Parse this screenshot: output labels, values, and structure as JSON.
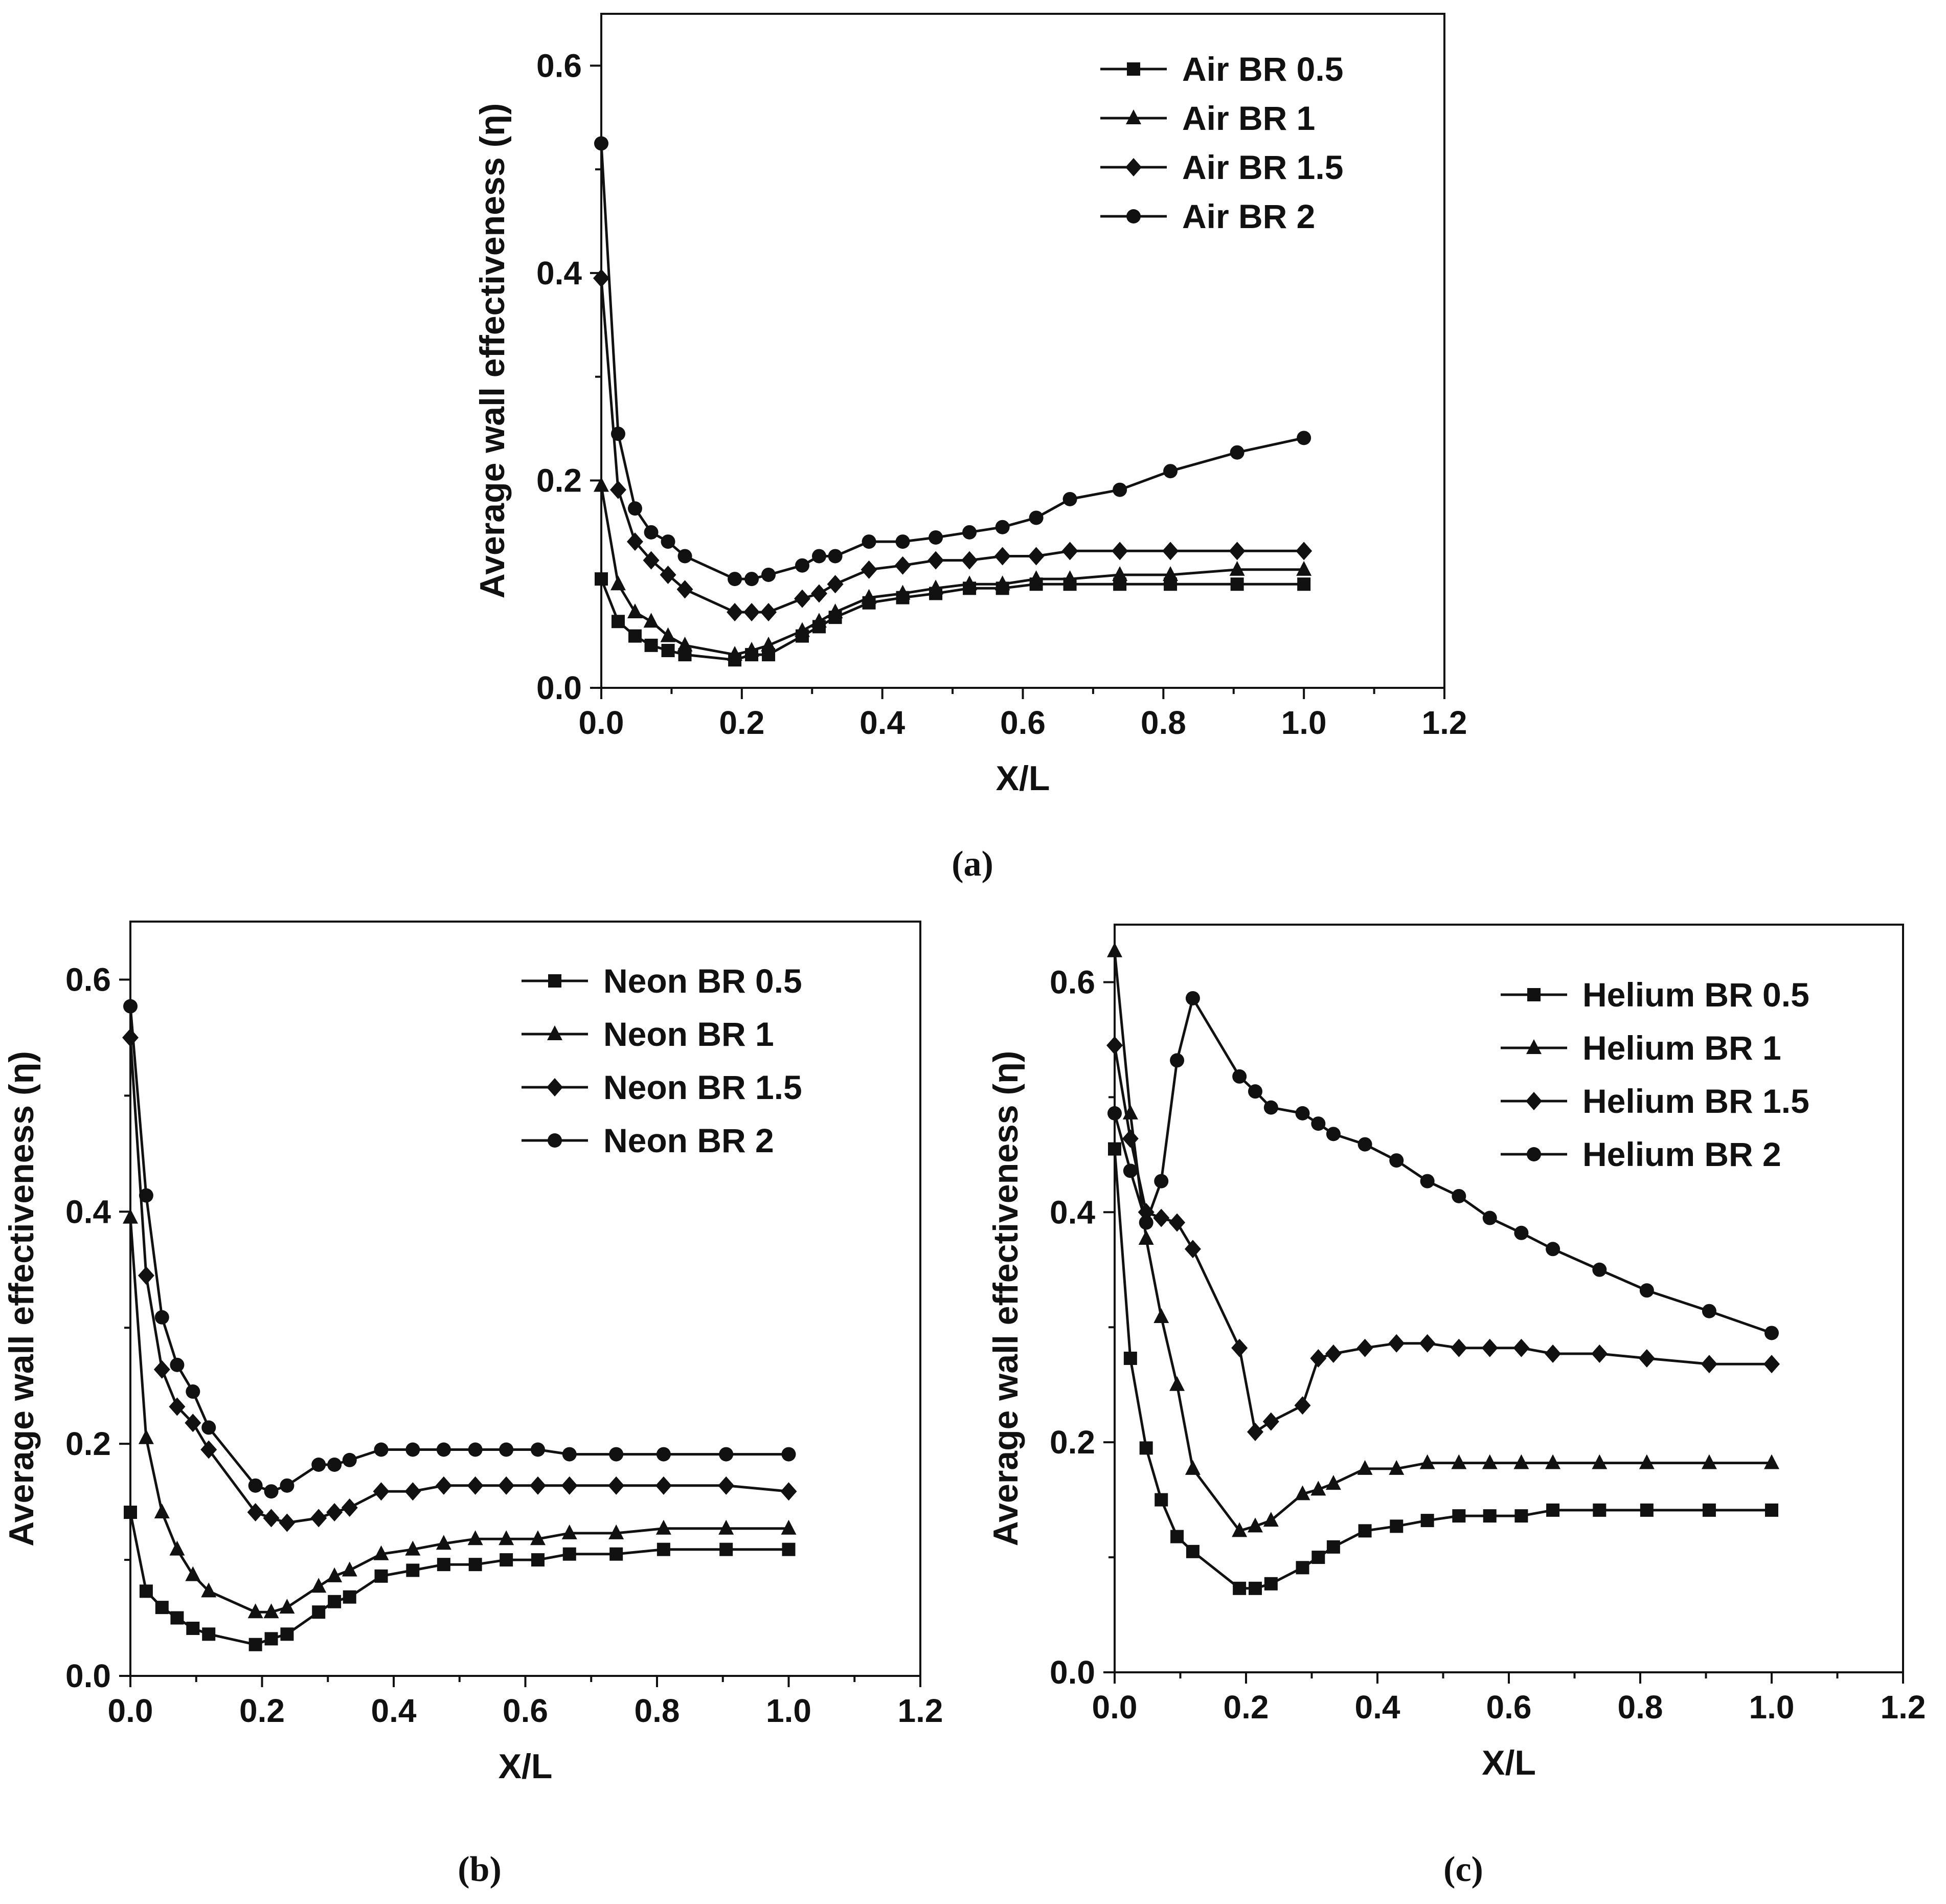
{
  "figure_labels": [
    "(a)",
    "(b)",
    "(c)"
  ],
  "chart_data": [
    {
      "type": "line",
      "panel": "(a)",
      "xlabel": "X/L",
      "ylabel": "Average wall effectiveness (η)",
      "xlim": [
        0,
        1.2
      ],
      "ylim": [
        0,
        0.65
      ],
      "x_ticks": [
        0.0,
        0.2,
        0.4,
        0.6,
        0.8,
        1.0,
        1.2
      ],
      "x_tick_labels": [
        "0.0",
        "0.2",
        "0.4",
        "0.6",
        "0.8",
        "1.0",
        "1.2"
      ],
      "y_ticks": [
        0.0,
        0.2,
        0.4,
        0.6
      ],
      "y_tick_labels": [
        "0.0",
        "0.2",
        "0.4",
        "0.6"
      ],
      "legend_position": "top-right",
      "series": [
        {
          "name": "Air BR 0.5",
          "marker": "square",
          "x": [
            0,
            0.024,
            0.048,
            0.071,
            0.095,
            0.119,
            0.19,
            0.214,
            0.238,
            0.286,
            0.31,
            0.333,
            0.381,
            0.429,
            0.476,
            0.524,
            0.571,
            0.619,
            0.667,
            0.738,
            0.81,
            0.905,
            1.0
          ],
          "y": [
            0.105,
            0.064,
            0.05,
            0.041,
            0.036,
            0.032,
            0.027,
            0.032,
            0.032,
            0.05,
            0.059,
            0.068,
            0.082,
            0.087,
            0.091,
            0.096,
            0.096,
            0.1,
            0.1,
            0.1,
            0.1,
            0.1,
            0.1
          ]
        },
        {
          "name": "Air BR 1",
          "marker": "triangle",
          "x": [
            0,
            0.024,
            0.048,
            0.071,
            0.095,
            0.119,
            0.19,
            0.214,
            0.238,
            0.286,
            0.31,
            0.333,
            0.381,
            0.429,
            0.476,
            0.524,
            0.571,
            0.619,
            0.667,
            0.738,
            0.81,
            0.905,
            1.0
          ],
          "y": [
            0.195,
            0.1,
            0.073,
            0.064,
            0.05,
            0.041,
            0.032,
            0.036,
            0.041,
            0.055,
            0.064,
            0.073,
            0.087,
            0.091,
            0.096,
            0.1,
            0.1,
            0.105,
            0.105,
            0.109,
            0.109,
            0.114,
            0.114
          ]
        },
        {
          "name": "Air BR 1.5",
          "marker": "diamond",
          "x": [
            0,
            0.024,
            0.048,
            0.071,
            0.095,
            0.119,
            0.19,
            0.214,
            0.238,
            0.286,
            0.31,
            0.333,
            0.381,
            0.429,
            0.476,
            0.524,
            0.571,
            0.619,
            0.667,
            0.738,
            0.81,
            0.905,
            1.0
          ],
          "y": [
            0.395,
            0.191,
            0.141,
            0.123,
            0.109,
            0.095,
            0.073,
            0.073,
            0.073,
            0.086,
            0.091,
            0.1,
            0.114,
            0.118,
            0.123,
            0.123,
            0.127,
            0.127,
            0.132,
            0.132,
            0.132,
            0.132,
            0.132
          ]
        },
        {
          "name": "Air BR 2",
          "marker": "circle",
          "x": [
            0,
            0.024,
            0.048,
            0.071,
            0.095,
            0.119,
            0.19,
            0.214,
            0.238,
            0.286,
            0.31,
            0.333,
            0.381,
            0.429,
            0.476,
            0.524,
            0.571,
            0.619,
            0.667,
            0.738,
            0.81,
            0.905,
            1.0
          ],
          "y": [
            0.525,
            0.245,
            0.173,
            0.15,
            0.141,
            0.127,
            0.105,
            0.105,
            0.109,
            0.118,
            0.127,
            0.127,
            0.141,
            0.141,
            0.145,
            0.15,
            0.155,
            0.164,
            0.182,
            0.191,
            0.209,
            0.227,
            0.241
          ]
        }
      ]
    },
    {
      "type": "line",
      "panel": "(b)",
      "xlabel": "X/L",
      "ylabel": "Average wall effectiveness (η)",
      "xlim": [
        0,
        1.2
      ],
      "ylim": [
        0,
        0.65
      ],
      "x_ticks": [
        0.0,
        0.2,
        0.4,
        0.6,
        0.8,
        1.0,
        1.2
      ],
      "x_tick_labels": [
        "0.0",
        "0.2",
        "0.4",
        "0.6",
        "0.8",
        "1.0",
        "1.2"
      ],
      "y_ticks": [
        0.0,
        0.2,
        0.4,
        0.6
      ],
      "y_tick_labels": [
        "0.0",
        "0.2",
        "0.4",
        "0.6"
      ],
      "legend_position": "top-right",
      "series": [
        {
          "name": "Neon BR 0.5",
          "marker": "square",
          "x": [
            0,
            0.024,
            0.048,
            0.071,
            0.095,
            0.119,
            0.19,
            0.214,
            0.238,
            0.286,
            0.31,
            0.333,
            0.381,
            0.429,
            0.476,
            0.524,
            0.571,
            0.619,
            0.667,
            0.738,
            0.81,
            0.905,
            1.0
          ],
          "y": [
            0.141,
            0.073,
            0.059,
            0.05,
            0.041,
            0.036,
            0.027,
            0.032,
            0.036,
            0.055,
            0.064,
            0.068,
            0.086,
            0.091,
            0.096,
            0.096,
            0.1,
            0.1,
            0.105,
            0.105,
            0.109,
            0.109,
            0.109
          ]
        },
        {
          "name": "Neon BR 1",
          "marker": "triangle",
          "x": [
            0,
            0.024,
            0.048,
            0.071,
            0.095,
            0.119,
            0.19,
            0.214,
            0.238,
            0.286,
            0.31,
            0.333,
            0.381,
            0.429,
            0.476,
            0.524,
            0.571,
            0.619,
            0.667,
            0.738,
            0.81,
            0.905,
            1.0
          ],
          "y": [
            0.395,
            0.205,
            0.141,
            0.109,
            0.087,
            0.073,
            0.055,
            0.055,
            0.059,
            0.077,
            0.086,
            0.091,
            0.105,
            0.109,
            0.114,
            0.118,
            0.118,
            0.118,
            0.123,
            0.123,
            0.127,
            0.127,
            0.127
          ]
        },
        {
          "name": "Neon BR 1.5",
          "marker": "diamond",
          "x": [
            0,
            0.024,
            0.048,
            0.071,
            0.095,
            0.119,
            0.19,
            0.214,
            0.238,
            0.286,
            0.31,
            0.333,
            0.381,
            0.429,
            0.476,
            0.524,
            0.571,
            0.619,
            0.667,
            0.738,
            0.81,
            0.905,
            1.0
          ],
          "y": [
            0.55,
            0.345,
            0.264,
            0.232,
            0.218,
            0.195,
            0.141,
            0.136,
            0.132,
            0.136,
            0.141,
            0.145,
            0.159,
            0.159,
            0.164,
            0.164,
            0.164,
            0.164,
            0.164,
            0.164,
            0.164,
            0.164,
            0.159
          ]
        },
        {
          "name": "Neon BR 2",
          "marker": "circle",
          "x": [
            0,
            0.024,
            0.048,
            0.071,
            0.095,
            0.119,
            0.19,
            0.214,
            0.238,
            0.286,
            0.31,
            0.333,
            0.381,
            0.429,
            0.476,
            0.524,
            0.571,
            0.619,
            0.667,
            0.738,
            0.81,
            0.905,
            1.0
          ],
          "y": [
            0.577,
            0.414,
            0.309,
            0.268,
            0.245,
            0.214,
            0.164,
            0.159,
            0.164,
            0.182,
            0.182,
            0.186,
            0.195,
            0.195,
            0.195,
            0.195,
            0.195,
            0.195,
            0.191,
            0.191,
            0.191,
            0.191,
            0.191
          ]
        }
      ]
    },
    {
      "type": "line",
      "panel": "(c)",
      "xlabel": "X/L",
      "ylabel": "Average wall effectiveness (η)",
      "xlim": [
        0,
        1.2
      ],
      "ylim": [
        0,
        0.65
      ],
      "x_ticks": [
        0.0,
        0.2,
        0.4,
        0.6,
        0.8,
        1.0,
        1.2
      ],
      "x_tick_labels": [
        "0.0",
        "0.2",
        "0.4",
        "0.6",
        "0.8",
        "1.0",
        "1.2"
      ],
      "y_ticks": [
        0.0,
        0.2,
        0.4,
        0.6
      ],
      "y_tick_labels": [
        "0.0",
        "0.2",
        "0.4",
        "0.6"
      ],
      "legend_position": "top-right",
      "series": [
        {
          "name": "Helium BR 0.5",
          "marker": "square",
          "x": [
            0,
            0.024,
            0.048,
            0.071,
            0.095,
            0.119,
            0.19,
            0.214,
            0.238,
            0.286,
            0.31,
            0.333,
            0.381,
            0.429,
            0.476,
            0.524,
            0.571,
            0.619,
            0.667,
            0.738,
            0.81,
            0.905,
            1.0
          ],
          "y": [
            0.455,
            0.273,
            0.195,
            0.15,
            0.118,
            0.105,
            0.073,
            0.073,
            0.077,
            0.091,
            0.1,
            0.109,
            0.123,
            0.127,
            0.132,
            0.136,
            0.136,
            0.136,
            0.141,
            0.141,
            0.141,
            0.141,
            0.141
          ]
        },
        {
          "name": "Helium BR 1",
          "marker": "triangle",
          "x": [
            0,
            0.024,
            0.048,
            0.071,
            0.095,
            0.119,
            0.19,
            0.214,
            0.238,
            0.286,
            0.31,
            0.333,
            0.381,
            0.429,
            0.476,
            0.524,
            0.571,
            0.619,
            0.667,
            0.738,
            0.81,
            0.905,
            1.0
          ],
          "y": [
            0.627,
            0.486,
            0.377,
            0.309,
            0.25,
            0.177,
            0.123,
            0.127,
            0.132,
            0.155,
            0.159,
            0.164,
            0.177,
            0.177,
            0.182,
            0.182,
            0.182,
            0.182,
            0.182,
            0.182,
            0.182,
            0.182,
            0.182
          ]
        },
        {
          "name": "Helium BR 1.5",
          "marker": "diamond",
          "x": [
            0,
            0.024,
            0.048,
            0.071,
            0.095,
            0.119,
            0.19,
            0.214,
            0.238,
            0.286,
            0.31,
            0.333,
            0.381,
            0.429,
            0.476,
            0.524,
            0.571,
            0.619,
            0.667,
            0.738,
            0.81,
            0.905,
            1.0
          ],
          "y": [
            0.545,
            0.464,
            0.4,
            0.395,
            0.391,
            0.368,
            0.282,
            0.209,
            0.218,
            0.232,
            0.273,
            0.277,
            0.282,
            0.286,
            0.286,
            0.282,
            0.282,
            0.282,
            0.277,
            0.277,
            0.273,
            0.268,
            0.268
          ]
        },
        {
          "name": "Helium BR 2",
          "marker": "circle",
          "x": [
            0,
            0.024,
            0.048,
            0.071,
            0.095,
            0.119,
            0.19,
            0.214,
            0.238,
            0.286,
            0.31,
            0.333,
            0.381,
            0.429,
            0.476,
            0.524,
            0.571,
            0.619,
            0.667,
            0.738,
            0.81,
            0.905,
            1.0
          ],
          "y": [
            0.486,
            0.436,
            0.391,
            0.427,
            0.532,
            0.586,
            0.518,
            0.505,
            0.491,
            0.486,
            0.477,
            0.468,
            0.459,
            0.445,
            0.427,
            0.414,
            0.395,
            0.382,
            0.368,
            0.35,
            0.332,
            0.314,
            0.295
          ]
        }
      ]
    }
  ]
}
